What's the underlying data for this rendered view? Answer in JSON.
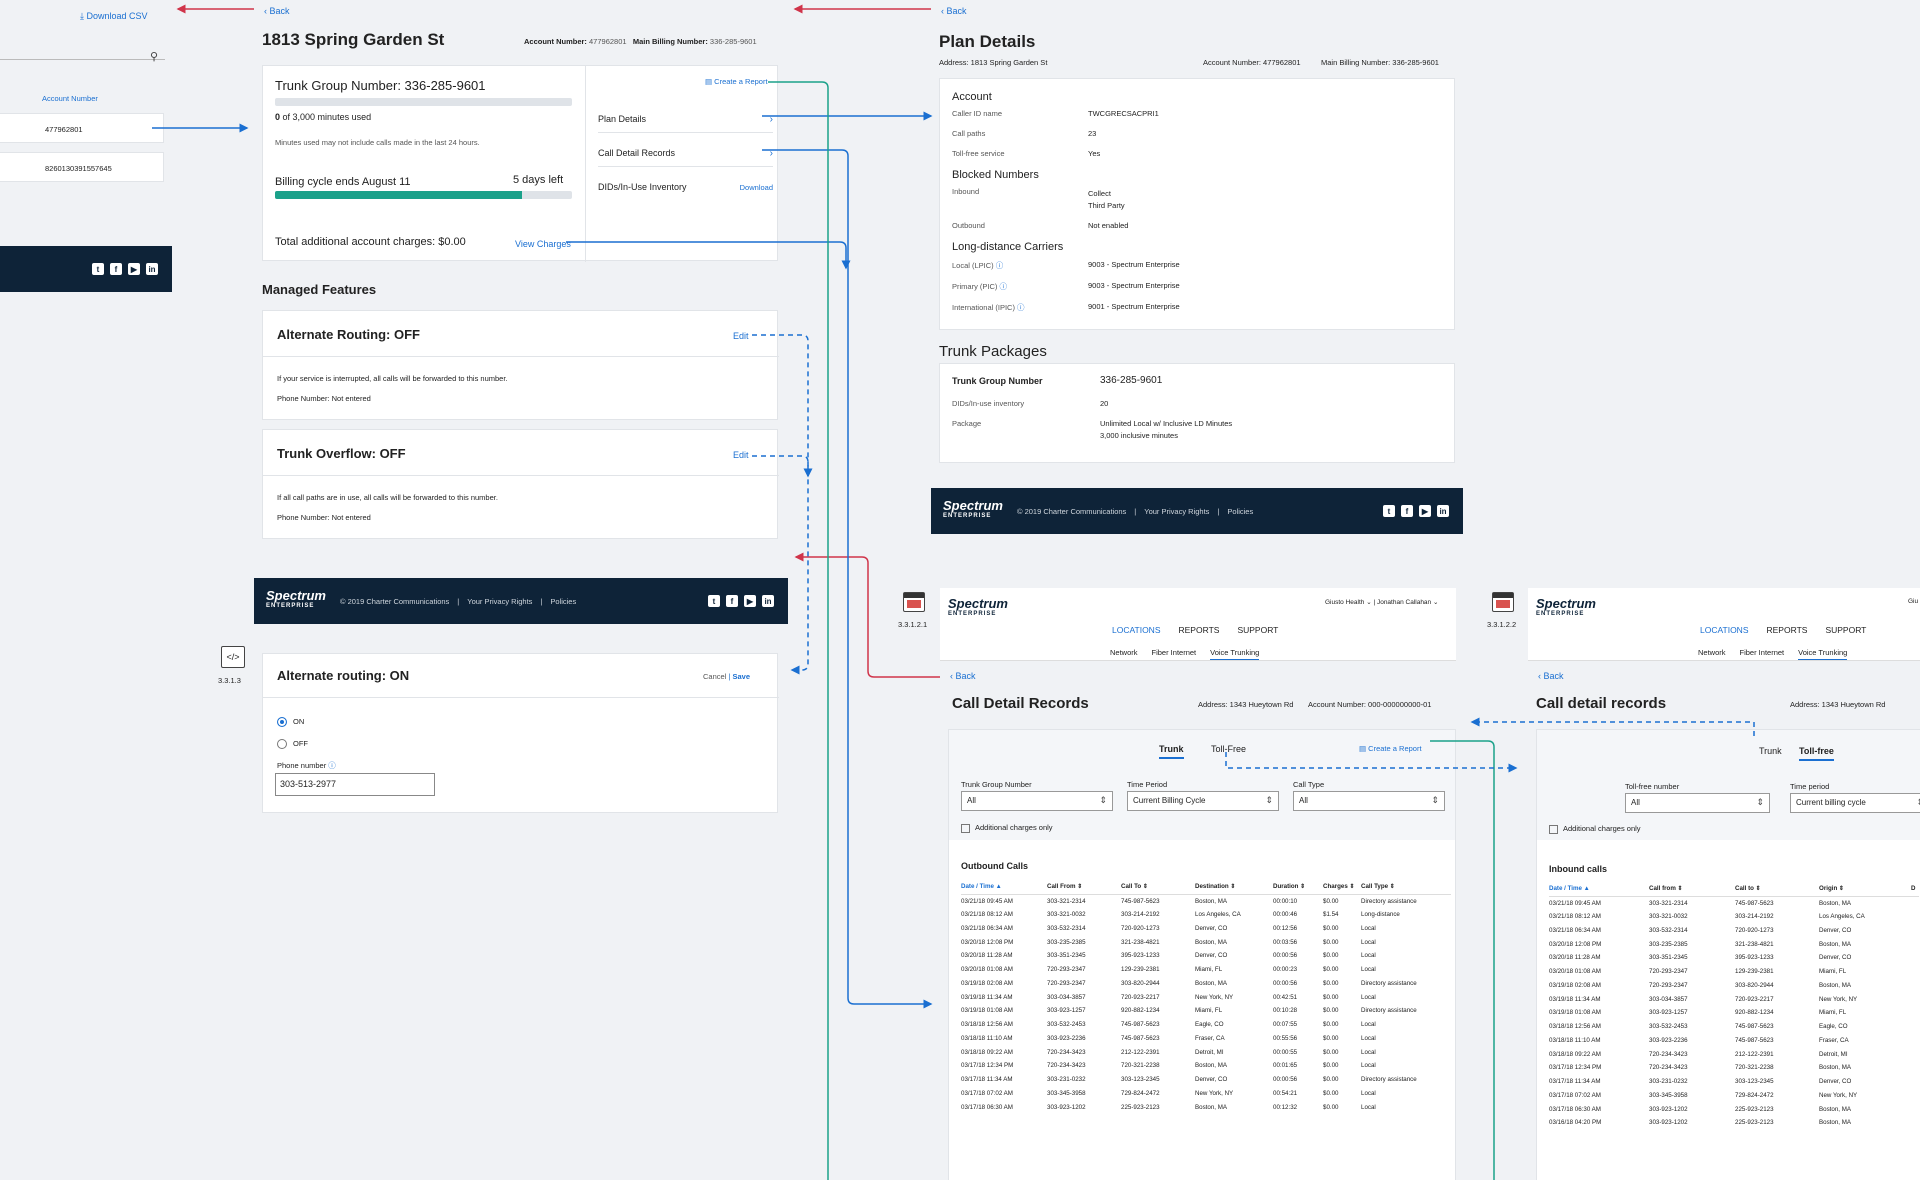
{
  "left_fragment": {
    "download_csv": "Download CSV",
    "column_header": "Account Number",
    "rows": [
      "477962801",
      "8260130391557645"
    ]
  },
  "location": {
    "back": "Back",
    "title": "1813 Spring Garden St",
    "account_label": "Account Number:",
    "account_value": "477962801",
    "billing_label": "Main Billing Number:",
    "billing_value": "336-285-9601",
    "trunk_title": "Trunk Group Number: 336-285-9601",
    "minutes_used": "0",
    "minutes_rest": "of 3,000 minutes used",
    "minutes_progress": 0,
    "minutes_note": "Minutes used may not include calls made in the last 24 hours.",
    "billing_cycle": "Billing cycle ends August 11",
    "days_left": "5 days left",
    "billing_progress": 0.83,
    "additional_charges": "Total additional account charges: $0.00",
    "view_charges": "View Charges",
    "create_report": "Create a Report",
    "plan_details": "Plan Details",
    "cdr": "Call Detail Records",
    "dids": "DIDs/In-Use Inventory",
    "download": "Download",
    "managed_features": "Managed Features",
    "alt_routing_title": "Alternate Routing: OFF",
    "alt_routing_edit": "Edit",
    "alt_routing_desc": "If your service is interrupted, all calls will be forwarded to this number.",
    "alt_routing_phone": "Phone Number: Not entered",
    "overflow_title": "Trunk Overflow: OFF",
    "overflow_edit": "Edit",
    "overflow_desc": "If all call paths are in use, all calls will be forwarded to this number.",
    "overflow_phone": "Phone Number: Not entered"
  },
  "footer": {
    "logo": "Spectrum",
    "logo_sub": "ENTERPRISE",
    "copyright": "© 2019 Charter Communications",
    "privacy": "Your Privacy Rights",
    "policies": "Policies",
    "social_icons": [
      "twitter-icon",
      "facebook-icon",
      "youtube-icon",
      "linkedin-icon"
    ]
  },
  "alt_on": {
    "screen_id": "3.3.1.3",
    "title": "Alternate routing: ON",
    "cancel": "Cancel",
    "save": "Save",
    "on": "ON",
    "off": "OFF",
    "phone_label": "Phone number",
    "phone_value": "303-513-2977"
  },
  "plan": {
    "back": "Back",
    "title": "Plan Details",
    "address": "Address: 1813 Spring Garden St",
    "account": "Account Number: 477962801",
    "billing": "Main Billing Number: 336-285-9601",
    "account_section": "Account",
    "caller_id_label": "Caller ID name",
    "caller_id_value": "TWCGRECSACPRI1",
    "call_paths_label": "Call paths",
    "call_paths_value": "23",
    "tollfree_label": "Toll-free service",
    "tollfree_value": "Yes",
    "blocked_section": "Blocked Numbers",
    "inbound_label": "Inbound",
    "inbound_value1": "Collect",
    "inbound_value2": "Third Party",
    "outbound_label": "Outbound",
    "outbound_value": "Not enabled",
    "ld_section": "Long-distance Carriers",
    "lpic_label": "Local (LPIC)",
    "lpic_value": "9003 - Spectrum Enterprise",
    "pic_label": "Primary (PIC)",
    "pic_value": "9003 - Spectrum Enterprise",
    "ipic_label": "International (IPIC)",
    "ipic_value": "9001 - Spectrum Enterprise",
    "trunk_section": "Trunk Packages",
    "tgn_label": "Trunk Group Number",
    "tgn_value": "336-285-9601",
    "dids_label": "DIDs/In-use inventory",
    "dids_value": "20",
    "package_label": "Package",
    "package_value1": "Unlimited Local w/ Inclusive LD Minutes",
    "package_value2": "3,000 inclusive minutes"
  },
  "cdr1": {
    "screen_id": "3.3.1.2.1",
    "org": "Giusto Health",
    "user": "Jonathan Callahan",
    "nav": [
      "LOCATIONS",
      "REPORTS",
      "SUPPORT"
    ],
    "subnav": [
      "Network",
      "Fiber Internet",
      "Voice Trunking"
    ],
    "back": "Back",
    "title": "Call Detail Records",
    "address": "Address: 1343 Hueytown Rd",
    "account": "Account Number: 000-000000000-01",
    "tab_trunk": "Trunk",
    "tab_tollfree": "Toll-Free",
    "create_report": "Create a Report",
    "f1_label": "Trunk Group Number",
    "f1_value": "All",
    "f2_label": "Time Period",
    "f2_value": "Current Billing Cycle",
    "f3_label": "Call Type",
    "f3_value": "All",
    "additional_only": "Additional charges only",
    "section": "Outbound Calls",
    "headers": [
      "Date / Time ▲",
      "Call From ⇕",
      "Call To ⇕",
      "Destination ⇕",
      "Duration ⇕",
      "Charges ⇕",
      "Call Type ⇕"
    ],
    "rows": [
      [
        "03/21/18 09:45 AM",
        "303-321-2314",
        "745-987-5623",
        "Boston, MA",
        "00:00:10",
        "$0.00",
        "Directory assistance"
      ],
      [
        "03/21/18 08:12 AM",
        "303-321-0032",
        "303-214-2192",
        "Los Angeles, CA",
        "00:00:46",
        "$1.54",
        "Long-distance"
      ],
      [
        "03/21/18 06:34 AM",
        "303-532-2314",
        "720-920-1273",
        "Denver, CO",
        "00:12:56",
        "$0.00",
        "Local"
      ],
      [
        "03/20/18 12:08 PM",
        "303-235-2385",
        "321-238-4821",
        "Boston, MA",
        "00:03:56",
        "$0.00",
        "Local"
      ],
      [
        "03/20/18 11:28 AM",
        "303-351-2345",
        "395-923-1233",
        "Denver, CO",
        "00:00:56",
        "$0.00",
        "Local"
      ],
      [
        "03/20/18 01:08 AM",
        "720-293-2347",
        "129-239-2381",
        "Miami, FL",
        "00:00:23",
        "$0.00",
        "Local"
      ],
      [
        "03/19/18 02:08 AM",
        "720-293-2347",
        "303-820-2944",
        "Boston, MA",
        "00:00:56",
        "$0.00",
        "Directory assistance"
      ],
      [
        "03/19/18 11:34 AM",
        "303-034-3857",
        "720-923-2217",
        "New York, NY",
        "00:42:51",
        "$0.00",
        "Local"
      ],
      [
        "03/19/18 01:08 AM",
        "303-923-1257",
        "920-882-1234",
        "Miami, FL",
        "00:10:28",
        "$0.00",
        "Directory assistance"
      ],
      [
        "03/18/18 12:56 AM",
        "303-532-2453",
        "745-987-5623",
        "Eagle, CO",
        "00:07:55",
        "$0.00",
        "Local"
      ],
      [
        "03/18/18 11:10 AM",
        "303-923-2236",
        "745-987-5623",
        "Fraser, CA",
        "00:55:56",
        "$0.00",
        "Local"
      ],
      [
        "03/18/18 09:22 AM",
        "720-234-3423",
        "212-122-2391",
        "Detroit, MI",
        "00:00:55",
        "$0.00",
        "Local"
      ],
      [
        "03/17/18 12:34 PM",
        "720-234-3423",
        "720-321-2238",
        "Boston, MA",
        "00:01:65",
        "$0.00",
        "Local"
      ],
      [
        "03/17/18 11:34 AM",
        "303-231-0232",
        "303-123-2345",
        "Denver, CO",
        "00:00:56",
        "$0.00",
        "Directory assistance"
      ],
      [
        "03/17/18 07:02 AM",
        "303-345-3958",
        "729-824-2472",
        "New York, NY",
        "00:54:21",
        "$0.00",
        "Local"
      ],
      [
        "03/17/18 06:30 AM",
        "303-923-1202",
        "225-923-2123",
        "Boston, MA",
        "00:12:32",
        "$0.00",
        "Local"
      ]
    ]
  },
  "cdr2": {
    "screen_id": "3.3.1.2.2",
    "org": "Giu",
    "nav": [
      "LOCATIONS",
      "REPORTS",
      "SUPPORT"
    ],
    "subnav": [
      "Network",
      "Fiber Internet",
      "Voice Trunking"
    ],
    "back": "Back",
    "title": "Call detail records",
    "address": "Address: 1343 Hueytown Rd",
    "tab_trunk": "Trunk",
    "tab_tollfree": "Toll-free",
    "f1_label": "Toll-free number",
    "f1_value": "All",
    "f2_label": "Time period",
    "f2_value": "Current billing cycle",
    "additional_only": "Additional charges only",
    "section": "Inbound calls",
    "headers": [
      "Date / Time ▲",
      "Call from ⇕",
      "Call to ⇕",
      "Origin ⇕",
      "D"
    ],
    "rows": [
      [
        "03/21/18 09:45 AM",
        "303-321-2314",
        "745-987-5623",
        "Boston, MA"
      ],
      [
        "03/21/18 08:12 AM",
        "303-321-0032",
        "303-214-2192",
        "Los Angeles, CA"
      ],
      [
        "03/21/18 06:34 AM",
        "303-532-2314",
        "720-920-1273",
        "Denver, CO"
      ],
      [
        "03/20/18 12:08 PM",
        "303-235-2385",
        "321-238-4821",
        "Boston, MA"
      ],
      [
        "03/20/18 11:28 AM",
        "303-351-2345",
        "395-923-1233",
        "Denver, CO"
      ],
      [
        "03/20/18 01:08 AM",
        "720-293-2347",
        "129-239-2381",
        "Miami, FL"
      ],
      [
        "03/19/18 02:08 AM",
        "720-293-2347",
        "303-820-2944",
        "Boston, MA"
      ],
      [
        "03/19/18 11:34 AM",
        "303-034-3857",
        "720-923-2217",
        "New York, NY"
      ],
      [
        "03/19/18 01:08 AM",
        "303-923-1257",
        "920-882-1234",
        "Miami, FL"
      ],
      [
        "03/18/18 12:56 AM",
        "303-532-2453",
        "745-987-5623",
        "Eagle, CO"
      ],
      [
        "03/18/18 11:10 AM",
        "303-923-2236",
        "745-987-5623",
        "Fraser, CA"
      ],
      [
        "03/18/18 09:22 AM",
        "720-234-3423",
        "212-122-2391",
        "Detroit, MI"
      ],
      [
        "03/17/18 12:34 PM",
        "720-234-3423",
        "720-321-2238",
        "Boston, MA"
      ],
      [
        "03/17/18 11:34 AM",
        "303-231-0232",
        "303-123-2345",
        "Denver, CO"
      ],
      [
        "03/17/18 07:02 AM",
        "303-345-3958",
        "729-824-2472",
        "New York, NY"
      ],
      [
        "03/17/18 06:30 AM",
        "303-923-1202",
        "225-923-2123",
        "Boston, MA"
      ],
      [
        "03/16/18 04:20 PM",
        "303-923-1202",
        "225-923-2123",
        "Boston, MA"
      ]
    ]
  },
  "colors": {
    "accent": "#1a6fd1",
    "progress": "#1ba18a",
    "footer": "#0e2338",
    "back_arrow": "#d0344a",
    "flow_teal": "#1ba18a"
  }
}
